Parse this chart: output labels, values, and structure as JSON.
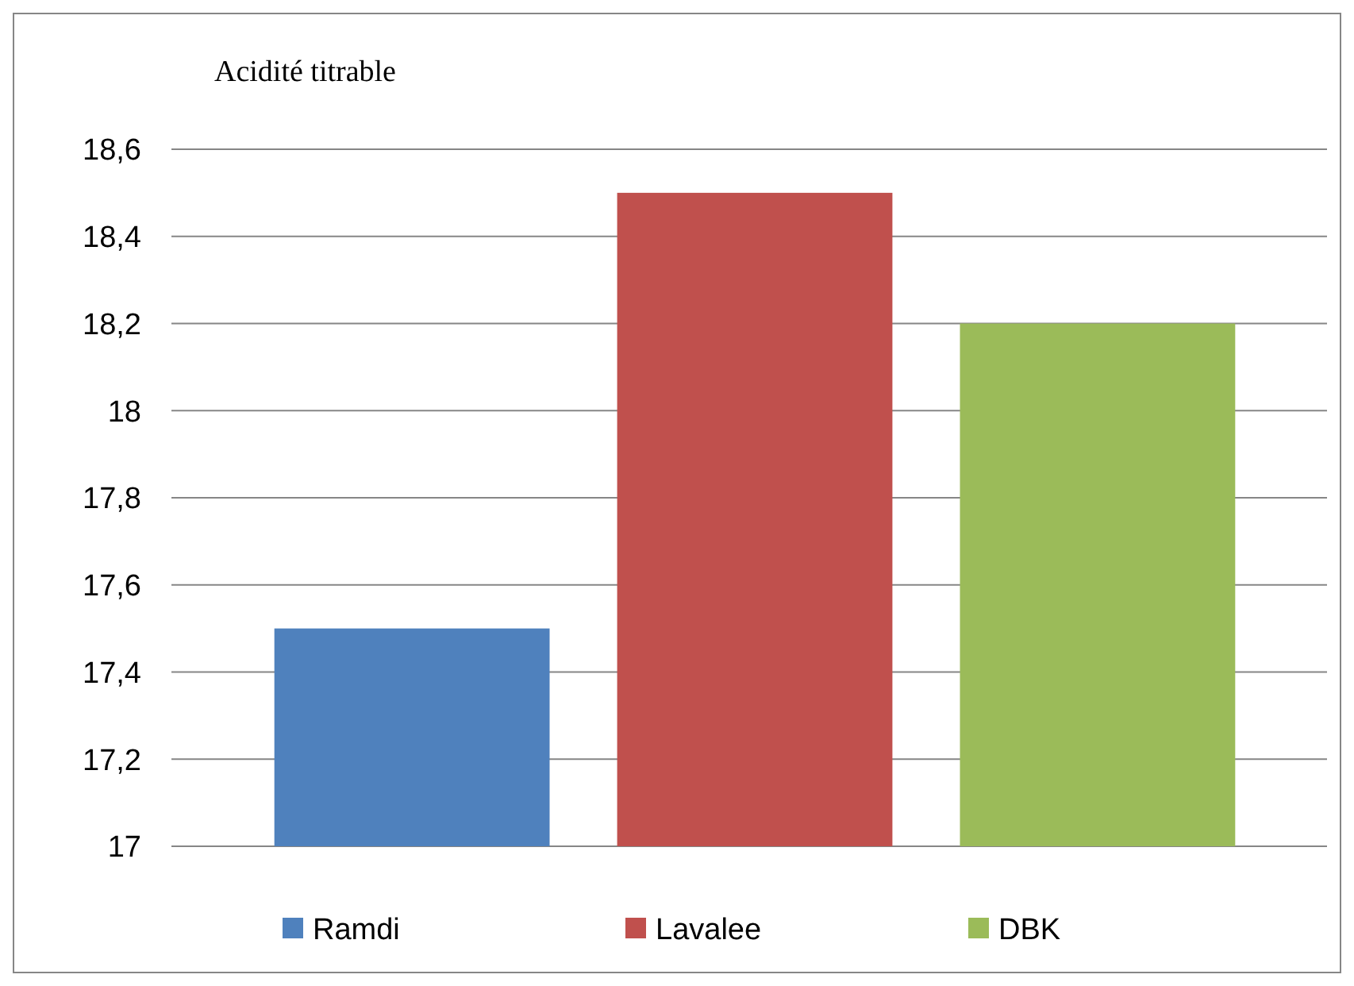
{
  "chart_data": {
    "type": "bar",
    "title": "Acidité titrable",
    "categories": [
      null
    ],
    "series": [
      {
        "name": "Ramdi",
        "color": "#4f81bd",
        "values": [
          17.5
        ]
      },
      {
        "name": "Lavalee",
        "color": "#c0504d",
        "values": [
          18.5
        ]
      },
      {
        "name": "DBK",
        "color": "#9bbb59",
        "values": [
          18.2
        ]
      }
    ],
    "ylim": [
      17,
      18.6
    ],
    "yticks": [
      17,
      {
        "value": 17.2,
        "label": "17,2"
      },
      {
        "value": 17.4,
        "label": "17,4"
      },
      {
        "value": 17.6,
        "label": "17,6"
      },
      {
        "value": 17.8,
        "label": "17,8"
      },
      18,
      {
        "value": 18.2,
        "label": "18,2"
      },
      {
        "value": 18.4,
        "label": "18,4"
      },
      {
        "value": 18.6,
        "label": "18,6"
      }
    ],
    "grid": "y",
    "legend": "bottom"
  }
}
